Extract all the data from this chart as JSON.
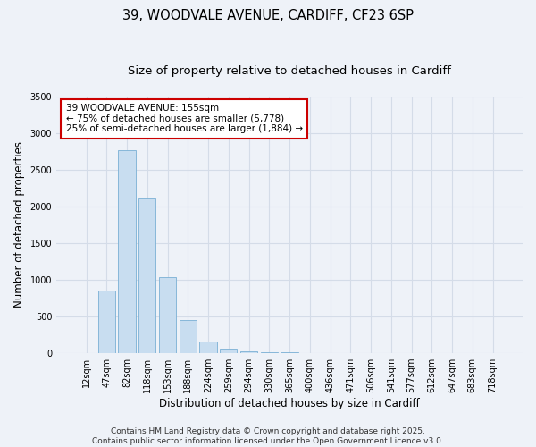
{
  "title_line1": "39, WOODVALE AVENUE, CARDIFF, CF23 6SP",
  "title_line2": "Size of property relative to detached houses in Cardiff",
  "xlabel": "Distribution of detached houses by size in Cardiff",
  "ylabel": "Number of detached properties",
  "bar_color": "#c8ddf0",
  "bar_edge_color": "#7ab0d4",
  "bg_color": "#eef2f8",
  "grid_color": "#d4dce8",
  "categories": [
    "12sqm",
    "47sqm",
    "82sqm",
    "118sqm",
    "153sqm",
    "188sqm",
    "224sqm",
    "259sqm",
    "294sqm",
    "330sqm",
    "365sqm",
    "400sqm",
    "436sqm",
    "471sqm",
    "506sqm",
    "541sqm",
    "577sqm",
    "612sqm",
    "647sqm",
    "683sqm",
    "718sqm"
  ],
  "values": [
    0,
    850,
    2760,
    2100,
    1030,
    450,
    155,
    60,
    20,
    5,
    2,
    0,
    0,
    0,
    0,
    0,
    0,
    0,
    0,
    0,
    0
  ],
  "ylim": [
    0,
    3500
  ],
  "yticks": [
    0,
    500,
    1000,
    1500,
    2000,
    2500,
    3000,
    3500
  ],
  "annotation_text": "39 WOODVALE AVENUE: 155sqm\n← 75% of detached houses are smaller (5,778)\n25% of semi-detached houses are larger (1,884) →",
  "annotation_box_color": "#ffffff",
  "annotation_box_edge": "#cc0000",
  "footer_text": "Contains HM Land Registry data © Crown copyright and database right 2025.\nContains public sector information licensed under the Open Government Licence v3.0.",
  "title_fontsize": 10.5,
  "subtitle_fontsize": 9.5,
  "axis_label_fontsize": 8.5,
  "tick_fontsize": 7,
  "annot_fontsize": 7.5,
  "footer_fontsize": 6.5
}
